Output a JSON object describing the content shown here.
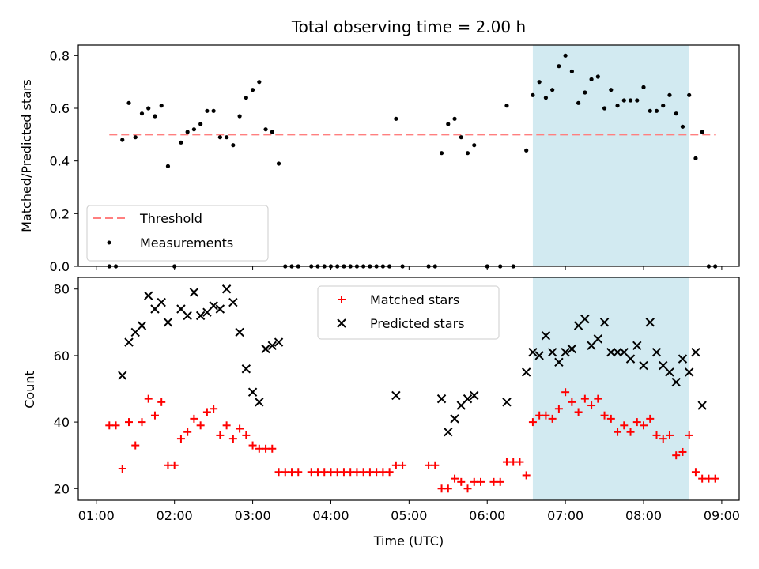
{
  "chart_data": {
    "title": "Total observing time = 2.00 h",
    "type": "scatter",
    "xlabel": "Time (UTC)",
    "x_tick_labels": [
      "01:00",
      "02:00",
      "03:00",
      "04:00",
      "05:00",
      "06:00",
      "07:00",
      "08:00",
      "09:00"
    ],
    "highlight_span": {
      "start": "06:35",
      "end": "08:35",
      "color": "#add8e6"
    },
    "colors": {
      "threshold": "#ff7f7f",
      "measurements": "#000000",
      "matched": "#ff0000",
      "predicted": "#000000",
      "highlight": "#add8e6"
    },
    "top": {
      "ylabel": "Matched/Predicted stars",
      "ylim": [
        0,
        0.84
      ],
      "y_ticks": [
        "0.0",
        "0.2",
        "0.4",
        "0.6",
        "0.8"
      ],
      "threshold": {
        "name": "Threshold",
        "value": 0.5,
        "x_range": [
          "01:10",
          "08:55"
        ]
      },
      "measurements": {
        "name": "Measurements",
        "points": [
          [
            "01:10",
            0.0
          ],
          [
            "01:15",
            0.0
          ],
          [
            "01:20",
            0.48
          ],
          [
            "01:25",
            0.62
          ],
          [
            "01:30",
            0.49
          ],
          [
            "01:35",
            0.58
          ],
          [
            "01:40",
            0.6
          ],
          [
            "01:45",
            0.57
          ],
          [
            "01:50",
            0.61
          ],
          [
            "01:55",
            0.38
          ],
          [
            "02:00",
            0.0
          ],
          [
            "02:05",
            0.47
          ],
          [
            "02:10",
            0.51
          ],
          [
            "02:15",
            0.52
          ],
          [
            "02:20",
            0.54
          ],
          [
            "02:25",
            0.59
          ],
          [
            "02:30",
            0.59
          ],
          [
            "02:35",
            0.49
          ],
          [
            "02:40",
            0.49
          ],
          [
            "02:45",
            0.46
          ],
          [
            "02:50",
            0.57
          ],
          [
            "02:55",
            0.64
          ],
          [
            "03:00",
            0.67
          ],
          [
            "03:05",
            0.7
          ],
          [
            "03:10",
            0.52
          ],
          [
            "03:15",
            0.51
          ],
          [
            "03:20",
            0.39
          ],
          [
            "03:25",
            0.0
          ],
          [
            "03:30",
            0.0
          ],
          [
            "03:35",
            0.0
          ],
          [
            "03:45",
            0.0
          ],
          [
            "03:50",
            0.0
          ],
          [
            "03:55",
            0.0
          ],
          [
            "04:00",
            0.0
          ],
          [
            "04:05",
            0.0
          ],
          [
            "04:10",
            0.0
          ],
          [
            "04:15",
            0.0
          ],
          [
            "04:20",
            0.0
          ],
          [
            "04:25",
            0.0
          ],
          [
            "04:30",
            0.0
          ],
          [
            "04:35",
            0.0
          ],
          [
            "04:40",
            0.0
          ],
          [
            "04:45",
            0.0
          ],
          [
            "04:50",
            0.56
          ],
          [
            "04:55",
            0.0
          ],
          [
            "05:15",
            0.0
          ],
          [
            "05:20",
            0.0
          ],
          [
            "05:25",
            0.43
          ],
          [
            "05:30",
            0.54
          ],
          [
            "05:35",
            0.56
          ],
          [
            "05:40",
            0.49
          ],
          [
            "05:45",
            0.43
          ],
          [
            "05:50",
            0.46
          ],
          [
            "06:00",
            0.0
          ],
          [
            "06:10",
            0.0
          ],
          [
            "06:15",
            0.61
          ],
          [
            "06:20",
            0.0
          ],
          [
            "06:30",
            0.44
          ],
          [
            "06:35",
            0.65
          ],
          [
            "06:40",
            0.7
          ],
          [
            "06:45",
            0.64
          ],
          [
            "06:50",
            0.67
          ],
          [
            "06:55",
            0.76
          ],
          [
            "07:00",
            0.8
          ],
          [
            "07:05",
            0.74
          ],
          [
            "07:10",
            0.62
          ],
          [
            "07:15",
            0.66
          ],
          [
            "07:20",
            0.71
          ],
          [
            "07:25",
            0.72
          ],
          [
            "07:30",
            0.6
          ],
          [
            "07:35",
            0.67
          ],
          [
            "07:40",
            0.61
          ],
          [
            "07:45",
            0.63
          ],
          [
            "07:50",
            0.63
          ],
          [
            "07:55",
            0.63
          ],
          [
            "08:00",
            0.68
          ],
          [
            "08:05",
            0.59
          ],
          [
            "08:10",
            0.59
          ],
          [
            "08:15",
            0.61
          ],
          [
            "08:20",
            0.65
          ],
          [
            "08:25",
            0.58
          ],
          [
            "08:30",
            0.53
          ],
          [
            "08:35",
            0.65
          ],
          [
            "08:40",
            0.41
          ],
          [
            "08:45",
            0.51
          ],
          [
            "08:50",
            0.0
          ],
          [
            "08:55",
            0.0
          ]
        ]
      }
    },
    "bottom": {
      "ylabel": "Count",
      "ylim": [
        16.5,
        83.5
      ],
      "y_ticks": [
        "20",
        "40",
        "60",
        "80"
      ],
      "matched": {
        "name": "Matched stars",
        "points": [
          [
            "01:10",
            39
          ],
          [
            "01:15",
            39
          ],
          [
            "01:20",
            26
          ],
          [
            "01:25",
            40
          ],
          [
            "01:30",
            33
          ],
          [
            "01:35",
            40
          ],
          [
            "01:40",
            47
          ],
          [
            "01:45",
            42
          ],
          [
            "01:50",
            46
          ],
          [
            "01:55",
            27
          ],
          [
            "02:00",
            27
          ],
          [
            "02:05",
            35
          ],
          [
            "02:10",
            37
          ],
          [
            "02:15",
            41
          ],
          [
            "02:20",
            39
          ],
          [
            "02:25",
            43
          ],
          [
            "02:30",
            44
          ],
          [
            "02:35",
            36
          ],
          [
            "02:40",
            39
          ],
          [
            "02:45",
            35
          ],
          [
            "02:50",
            38
          ],
          [
            "02:55",
            36
          ],
          [
            "03:00",
            33
          ],
          [
            "03:05",
            32
          ],
          [
            "03:10",
            32
          ],
          [
            "03:15",
            32
          ],
          [
            "03:20",
            25
          ],
          [
            "03:25",
            25
          ],
          [
            "03:30",
            25
          ],
          [
            "03:35",
            25
          ],
          [
            "03:45",
            25
          ],
          [
            "03:50",
            25
          ],
          [
            "03:55",
            25
          ],
          [
            "04:00",
            25
          ],
          [
            "04:05",
            25
          ],
          [
            "04:10",
            25
          ],
          [
            "04:15",
            25
          ],
          [
            "04:20",
            25
          ],
          [
            "04:25",
            25
          ],
          [
            "04:30",
            25
          ],
          [
            "04:35",
            25
          ],
          [
            "04:40",
            25
          ],
          [
            "04:45",
            25
          ],
          [
            "04:50",
            27
          ],
          [
            "04:55",
            27
          ],
          [
            "05:15",
            27
          ],
          [
            "05:20",
            27
          ],
          [
            "05:25",
            20
          ],
          [
            "05:30",
            20
          ],
          [
            "05:35",
            23
          ],
          [
            "05:40",
            22
          ],
          [
            "05:45",
            20
          ],
          [
            "05:50",
            22
          ],
          [
            "05:55",
            22
          ],
          [
            "06:05",
            22
          ],
          [
            "06:10",
            22
          ],
          [
            "06:15",
            28
          ],
          [
            "06:20",
            28
          ],
          [
            "06:25",
            28
          ],
          [
            "06:30",
            24
          ],
          [
            "06:35",
            40
          ],
          [
            "06:40",
            42
          ],
          [
            "06:45",
            42
          ],
          [
            "06:50",
            41
          ],
          [
            "06:55",
            44
          ],
          [
            "07:00",
            49
          ],
          [
            "07:05",
            46
          ],
          [
            "07:10",
            43
          ],
          [
            "07:15",
            47
          ],
          [
            "07:20",
            45
          ],
          [
            "07:25",
            47
          ],
          [
            "07:30",
            42
          ],
          [
            "07:35",
            41
          ],
          [
            "07:40",
            37
          ],
          [
            "07:45",
            39
          ],
          [
            "07:50",
            37
          ],
          [
            "07:55",
            40
          ],
          [
            "08:00",
            39
          ],
          [
            "08:05",
            41
          ],
          [
            "08:10",
            36
          ],
          [
            "08:15",
            35
          ],
          [
            "08:20",
            36
          ],
          [
            "08:25",
            30
          ],
          [
            "08:30",
            31
          ],
          [
            "08:35",
            36
          ],
          [
            "08:40",
            25
          ],
          [
            "08:45",
            23
          ],
          [
            "08:50",
            23
          ],
          [
            "08:55",
            23
          ]
        ]
      },
      "predicted": {
        "name": "Predicted stars",
        "points": [
          [
            "01:20",
            54
          ],
          [
            "01:25",
            64
          ],
          [
            "01:30",
            67
          ],
          [
            "01:35",
            69
          ],
          [
            "01:40",
            78
          ],
          [
            "01:45",
            74
          ],
          [
            "01:50",
            76
          ],
          [
            "01:55",
            70
          ],
          [
            "02:05",
            74
          ],
          [
            "02:10",
            72
          ],
          [
            "02:15",
            79
          ],
          [
            "02:20",
            72
          ],
          [
            "02:25",
            73
          ],
          [
            "02:30",
            75
          ],
          [
            "02:35",
            74
          ],
          [
            "02:40",
            80
          ],
          [
            "02:45",
            76
          ],
          [
            "02:50",
            67
          ],
          [
            "02:55",
            56
          ],
          [
            "03:00",
            49
          ],
          [
            "03:05",
            46
          ],
          [
            "03:10",
            62
          ],
          [
            "03:15",
            63
          ],
          [
            "03:20",
            64
          ],
          [
            "04:50",
            48
          ],
          [
            "05:25",
            47
          ],
          [
            "05:30",
            37
          ],
          [
            "05:35",
            41
          ],
          [
            "05:40",
            45
          ],
          [
            "05:45",
            47
          ],
          [
            "05:50",
            48
          ],
          [
            "06:15",
            46
          ],
          [
            "06:30",
            55
          ],
          [
            "06:35",
            61
          ],
          [
            "06:40",
            60
          ],
          [
            "06:45",
            66
          ],
          [
            "06:50",
            61
          ],
          [
            "06:55",
            58
          ],
          [
            "07:00",
            61
          ],
          [
            "07:05",
            62
          ],
          [
            "07:10",
            69
          ],
          [
            "07:15",
            71
          ],
          [
            "07:20",
            63
          ],
          [
            "07:25",
            65
          ],
          [
            "07:30",
            70
          ],
          [
            "07:35",
            61
          ],
          [
            "07:40",
            61
          ],
          [
            "07:45",
            61
          ],
          [
            "07:50",
            59
          ],
          [
            "07:55",
            63
          ],
          [
            "08:00",
            57
          ],
          [
            "08:05",
            70
          ],
          [
            "08:10",
            61
          ],
          [
            "08:15",
            57
          ],
          [
            "08:20",
            55
          ],
          [
            "08:25",
            52
          ],
          [
            "08:30",
            59
          ],
          [
            "08:35",
            55
          ],
          [
            "08:40",
            61
          ],
          [
            "08:45",
            45
          ]
        ]
      }
    }
  }
}
